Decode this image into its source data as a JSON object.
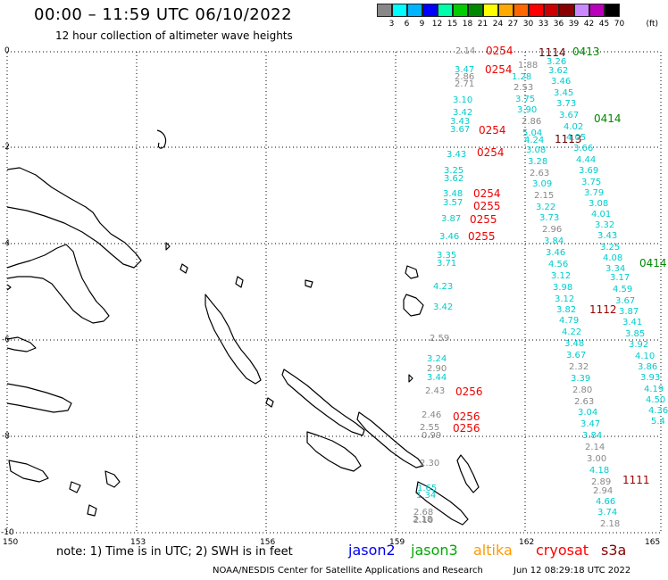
{
  "title": "00:00 – 11:59 UTC 06/10/2022",
  "subtitle": "12 hour collection of altimeter wave heights",
  "legend": {
    "unit": "(ft)",
    "colors": [
      "#888888",
      "#00ffff",
      "#00b4ff",
      "#0000ff",
      "#00ffaa",
      "#00cc00",
      "#008800",
      "#ffff00",
      "#ffaa00",
      "#ff6600",
      "#ff0000",
      "#cc0000",
      "#880000",
      "#cc88ff",
      "#bb00bb",
      "#000000"
    ],
    "labels": [
      "3",
      "6",
      "9",
      "12",
      "15",
      "18",
      "21",
      "24",
      "27",
      "30",
      "33",
      "36",
      "39",
      "42",
      "45",
      "70"
    ]
  },
  "axes": {
    "x_ticks": [
      "150",
      "153",
      "156",
      "159",
      "162",
      "165"
    ],
    "y_ticks": [
      "0",
      "-2",
      "-4",
      "-6",
      "-8",
      "-10"
    ]
  },
  "note": "note: 1) Time is in UTC; 2) SWH is in feet",
  "satellites": [
    {
      "name": "jason2",
      "color": "#0000ee"
    },
    {
      "name": "jason3",
      "color": "#00aa00"
    },
    {
      "name": "altika",
      "color": "#ff9900"
    },
    {
      "name": "cryosat",
      "color": "#ff0000"
    },
    {
      "name": "s3a",
      "color": "#880000"
    }
  ],
  "footer_left": "NOAA/NESDIS Center for Satellite Applications and Research",
  "footer_right": "Jun 12 08:29:18 UTC 2022",
  "time_labels": [
    {
      "text": "0254",
      "color": "#ee0000"
    },
    {
      "text": "0254",
      "color": "#ee0000"
    },
    {
      "text": "0254",
      "color": "#ee0000"
    },
    {
      "text": "0254",
      "color": "#ee0000"
    },
    {
      "text": "0254",
      "color": "#ee0000"
    },
    {
      "text": "0255",
      "color": "#ee0000"
    },
    {
      "text": "0255",
      "color": "#ee0000"
    },
    {
      "text": "0255",
      "color": "#ee0000"
    },
    {
      "text": "0256",
      "color": "#ee0000"
    },
    {
      "text": "0256",
      "color": "#ee0000"
    },
    {
      "text": "0256",
      "color": "#ee0000"
    },
    {
      "text": "1114",
      "color": "#660000"
    },
    {
      "text": "1113",
      "color": "#660000"
    },
    {
      "text": "1112",
      "color": "#990000"
    },
    {
      "text": "1111",
      "color": "#990000"
    },
    {
      "text": "0413",
      "color": "#008800"
    },
    {
      "text": "0414",
      "color": "#008800"
    },
    {
      "text": "0414",
      "color": "#008800"
    }
  ],
  "swh_tracks": {
    "cryosat": [
      {
        "t": "2.14",
        "c": "#888888"
      },
      {
        "t": "3.47",
        "c": "#00cccc"
      },
      {
        "t": "2.86",
        "c": "#888888"
      },
      {
        "t": "2.71",
        "c": "#888888"
      },
      {
        "t": "3.10",
        "c": "#00cccc"
      },
      {
        "t": "3.42",
        "c": "#00cccc"
      },
      {
        "t": "3.43",
        "c": "#00cccc"
      },
      {
        "t": "3.67",
        "c": "#00cccc"
      },
      {
        "t": "3.43",
        "c": "#00cccc"
      },
      {
        "t": "3.25",
        "c": "#00cccc"
      },
      {
        "t": "3.62",
        "c": "#00cccc"
      },
      {
        "t": "3.48",
        "c": "#00cccc"
      },
      {
        "t": "3.57",
        "c": "#00cccc"
      },
      {
        "t": "3.87",
        "c": "#00cccc"
      },
      {
        "t": "3.46",
        "c": "#00cccc"
      },
      {
        "t": "3.35",
        "c": "#00cccc"
      },
      {
        "t": "3.71",
        "c": "#00cccc"
      },
      {
        "t": "4.23",
        "c": "#00cccc"
      },
      {
        "t": "3.42",
        "c": "#00cccc"
      },
      {
        "t": "2.59",
        "c": "#888888"
      },
      {
        "t": "3.24",
        "c": "#00cccc"
      },
      {
        "t": "2.90",
        "c": "#888888"
      },
      {
        "t": "3.44",
        "c": "#00cccc"
      },
      {
        "t": "2.43",
        "c": "#888888"
      },
      {
        "t": "2.46",
        "c": "#888888"
      },
      {
        "t": "2.55",
        "c": "#888888"
      },
      {
        "t": "0.99",
        "c": "#888888"
      },
      {
        "t": "2.30",
        "c": "#888888"
      },
      {
        "t": "1.65",
        "c": "#00cccc"
      },
      {
        "t": "1.34",
        "c": "#00cccc"
      },
      {
        "t": "2.68",
        "c": "#888888"
      },
      {
        "t": "2.10",
        "c": "#888888"
      },
      {
        "t": "2.18",
        "c": "#888888"
      }
    ],
    "s3a_1": [
      {
        "t": "1.88",
        "c": "#888888"
      },
      {
        "t": "1.28",
        "c": "#00cccc"
      },
      {
        "t": "2.53",
        "c": "#888888"
      },
      {
        "t": "3.75",
        "c": "#00cccc"
      },
      {
        "t": "3.90",
        "c": "#00cccc"
      },
      {
        "t": "2.86",
        "c": "#888888"
      },
      {
        "t": "5.04",
        "c": "#00cccc"
      },
      {
        "t": "4.24",
        "c": "#00cccc"
      },
      {
        "t": "3.08",
        "c": "#00cccc"
      },
      {
        "t": "3.28",
        "c": "#00cccc"
      },
      {
        "t": "2.63",
        "c": "#888888"
      },
      {
        "t": "3.09",
        "c": "#00cccc"
      },
      {
        "t": "2.15",
        "c": "#888888"
      },
      {
        "t": "3.22",
        "c": "#00cccc"
      },
      {
        "t": "3.73",
        "c": "#00cccc"
      },
      {
        "t": "2.96",
        "c": "#888888"
      },
      {
        "t": "3.84",
        "c": "#00cccc"
      },
      {
        "t": "3.46",
        "c": "#00cccc"
      },
      {
        "t": "4.56",
        "c": "#00cccc"
      },
      {
        "t": "3.12",
        "c": "#00cccc"
      },
      {
        "t": "3.98",
        "c": "#00cccc"
      },
      {
        "t": "3.12",
        "c": "#00cccc"
      },
      {
        "t": "3.82",
        "c": "#00cccc"
      },
      {
        "t": "4.79",
        "c": "#00cccc"
      },
      {
        "t": "4.22",
        "c": "#00cccc"
      },
      {
        "t": "3.48",
        "c": "#00cccc"
      },
      {
        "t": "3.67",
        "c": "#00cccc"
      },
      {
        "t": "2.32",
        "c": "#888888"
      },
      {
        "t": "3.39",
        "c": "#00cccc"
      },
      {
        "t": "2.80",
        "c": "#888888"
      },
      {
        "t": "2.63",
        "c": "#888888"
      },
      {
        "t": "3.04",
        "c": "#00cccc"
      },
      {
        "t": "3.47",
        "c": "#00cccc"
      },
      {
        "t": "3.84",
        "c": "#00cccc"
      },
      {
        "t": "2.14",
        "c": "#888888"
      },
      {
        "t": "3.00",
        "c": "#888888"
      },
      {
        "t": "4.18",
        "c": "#00cccc"
      },
      {
        "t": "2.89",
        "c": "#888888"
      },
      {
        "t": "2.94",
        "c": "#888888"
      },
      {
        "t": "4.66",
        "c": "#00cccc"
      },
      {
        "t": "3.74",
        "c": "#00cccc"
      },
      {
        "t": "2.18",
        "c": "#888888"
      }
    ],
    "s3a_2": [
      {
        "t": "3.26",
        "c": "#00cccc"
      },
      {
        "t": "3.62",
        "c": "#00cccc"
      },
      {
        "t": "3.46",
        "c": "#00cccc"
      },
      {
        "t": "3.45",
        "c": "#00cccc"
      },
      {
        "t": "3.73",
        "c": "#00cccc"
      },
      {
        "t": "3.67",
        "c": "#00cccc"
      },
      {
        "t": "4.02",
        "c": "#00cccc"
      },
      {
        "t": "4.05",
        "c": "#00cccc"
      },
      {
        "t": "3.66",
        "c": "#00cccc"
      },
      {
        "t": "4.44",
        "c": "#00cccc"
      },
      {
        "t": "3.69",
        "c": "#00cccc"
      },
      {
        "t": "3.75",
        "c": "#00cccc"
      },
      {
        "t": "3.79",
        "c": "#00cccc"
      },
      {
        "t": "3.08",
        "c": "#00cccc"
      },
      {
        "t": "4.01",
        "c": "#00cccc"
      },
      {
        "t": "3.32",
        "c": "#00cccc"
      },
      {
        "t": "3.43",
        "c": "#00cccc"
      },
      {
        "t": "3.25",
        "c": "#00cccc"
      },
      {
        "t": "4.08",
        "c": "#00cccc"
      },
      {
        "t": "3.34",
        "c": "#00cccc"
      },
      {
        "t": "3.17",
        "c": "#00cccc"
      },
      {
        "t": "4.59",
        "c": "#00cccc"
      },
      {
        "t": "3.67",
        "c": "#00cccc"
      },
      {
        "t": "3.87",
        "c": "#00cccc"
      },
      {
        "t": "3.41",
        "c": "#00cccc"
      },
      {
        "t": "3.85",
        "c": "#00cccc"
      },
      {
        "t": "3.92",
        "c": "#00cccc"
      },
      {
        "t": "4.10",
        "c": "#00cccc"
      },
      {
        "t": "3.86",
        "c": "#00cccc"
      },
      {
        "t": "3.93",
        "c": "#00cccc"
      },
      {
        "t": "4.19",
        "c": "#00cccc"
      },
      {
        "t": "4.50",
        "c": "#00cccc"
      },
      {
        "t": "4.36",
        "c": "#00cccc"
      },
      {
        "t": "5.4",
        "c": "#00cccc"
      }
    ]
  }
}
